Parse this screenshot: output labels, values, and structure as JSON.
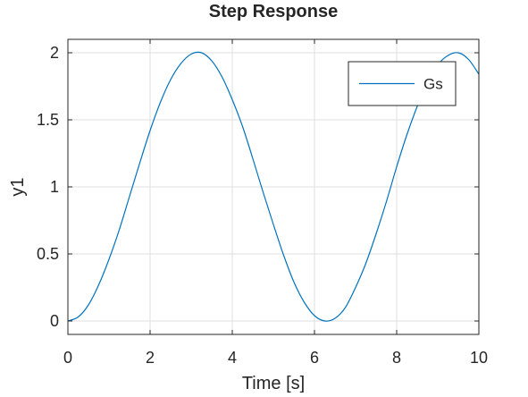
{
  "chart_data": {
    "type": "line",
    "title": "Step Response",
    "xlabel": "Time [s]",
    "ylabel": "y1",
    "xlim": [
      0,
      10
    ],
    "ylim": [
      -0.1,
      2.1
    ],
    "xticks": [
      0,
      2,
      4,
      6,
      8,
      10
    ],
    "xtick_labels": [
      "0",
      "2",
      "4",
      "6",
      "8",
      "10"
    ],
    "yticks": [
      0,
      0.5,
      1,
      1.5,
      2
    ],
    "ytick_labels": [
      "0",
      "0.5",
      "1",
      "1.5",
      "2"
    ],
    "grid": true,
    "legend_position": "top-right",
    "series": [
      {
        "name": "Gs",
        "color": "#0072BD",
        "x": [
          0,
          0.25,
          0.5,
          0.75,
          1,
          1.25,
          1.5,
          1.75,
          2,
          2.25,
          2.5,
          2.75,
          3,
          3.25,
          3.5,
          3.75,
          4,
          4.25,
          4.5,
          4.75,
          5,
          5.25,
          5.5,
          5.75,
          6,
          6.25,
          6.5,
          6.75,
          7,
          7.25,
          7.5,
          7.75,
          8,
          8.25,
          8.5,
          8.75,
          9,
          9.25,
          9.5,
          9.75,
          10
        ],
        "y": [
          0,
          0.03,
          0.12,
          0.27,
          0.46,
          0.68,
          0.93,
          1.18,
          1.42,
          1.63,
          1.8,
          1.92,
          1.99,
          2.0,
          1.94,
          1.82,
          1.65,
          1.45,
          1.21,
          0.96,
          0.72,
          0.49,
          0.29,
          0.14,
          0.04,
          0.0,
          0.02,
          0.1,
          0.25,
          0.43,
          0.65,
          0.89,
          1.15,
          1.39,
          1.6,
          1.78,
          1.91,
          1.98,
          2.0,
          1.95,
          1.84
        ]
      }
    ]
  }
}
